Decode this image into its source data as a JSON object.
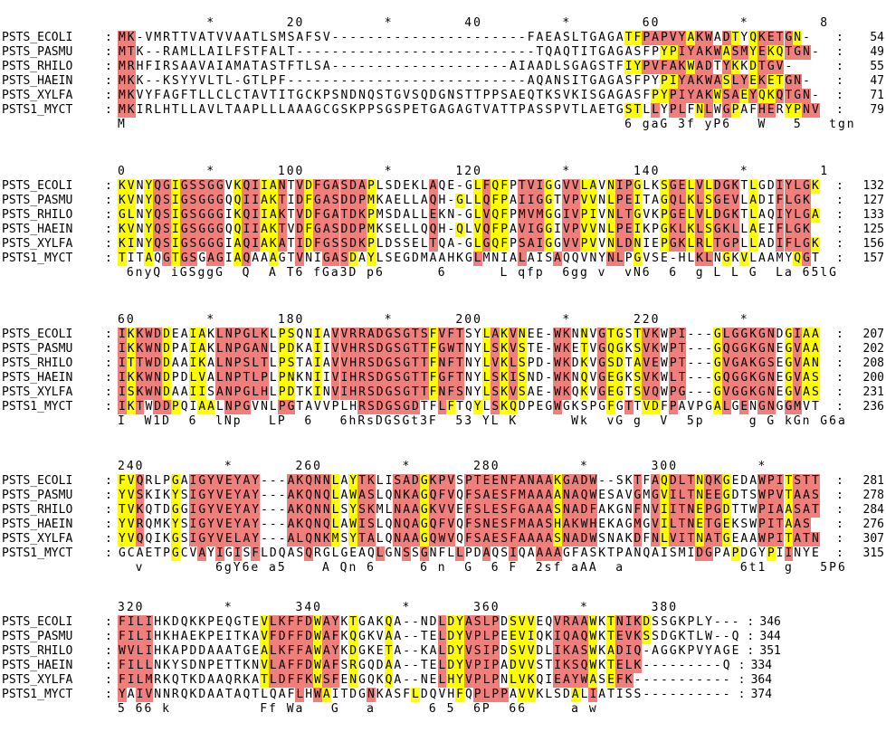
{
  "colors": {
    "identical": "#f07f7b",
    "conserved": "#ffff00",
    "similar": "#ffff99"
  },
  "separator": ":",
  "blocks": [
    {
      "ruler": "          *        20         *        40         *        60         *        8",
      "rows": [
        {
          "name": "PSTS_ECOLI",
          "seq": "MK-VMRTTVATVVAATLSMSAFSV----------------------FAEASLTGAGATFPAPVYAKWADTYQKETGN-",
          "num": "54",
          "mask": "RR.......................................................YYRRRRRYRR.RY.YRRRRYR.YR..YRYY."
        },
        {
          "name": "PSTS_PASMU",
          "seq": "MTK--RAMLLAILFSTFALT---------------------------TQAQTITGAGASFPYPIYAKWASMYEKQTGN-",
          "num": "49",
          "mask": "RR...........................................................YYRRRRRYRRYRYYRRRRYRRYR..YRYY."
        },
        {
          "name": "PSTS_RHILO",
          "seq": "MRHFIRSAAVAIAMATASTFTLSA--------------------AIAADLSGAGSTFIYPVFAKWADTYKKDTGV-",
          "num": "55",
          "mask": "RR.......................................................YYRRRRRYRR.RY.YRRRRYRRYR..YRYY."
        },
        {
          "name": "PSTS_HAEIN",
          "seq": "MKK--KSYYVLTL-GTLPF---------------------------AQANSITGAGASFPYPIYAKWASLYEKETGN-",
          "num": "47",
          "mask": "RR...........................................................YYRRRRRYRRYRYYRRRRYRRYR..YRYY."
        },
        {
          "name": "PSTS_XYLFA",
          "seq": "MKVYFAGFTLLCLCTAVTITGCKPSNDNQSTGVSQDGNSTTPPSAEQTKSVKISGAGASFPYPIYAKWSAEYQKQTGN-",
          "num": "71",
          "mask": "RR..........................................................YYRRRRRYRRYRYYRRRRYRRYR..YRYY."
        },
        {
          "name": "PSTS1_MYCT",
          "seq": "MKIRLHTLLAVLTAAPLLLAAAGCGSKPPSGSPETGAGAGTVATTPASSPVTLAETGSTLLYPLFNLWGPAFHERYPNV",
          "num": "79",
          "mask": "RR.......................................................YY.R.RR.YR.RY..RR.YYRRYR..Y.Y.."
        }
      ],
      "consensus": "M                                                        6 gaG 3f yP6   W   5   tgn"
    },
    {
      "ruler": "0         *       100         *       120         *       140         *        1",
      "rows": [
        {
          "name": "PSTS_ECOLI",
          "seq": "KVNYQGIGSSGGVKQIIANTVDFGASDAPLSDEKLAQE-GLFQFPTVIGGVVLAVNIPGLKSGELVLDGKTLGDIYLGK",
          "num": "132",
          "mask": "YY.YRRYRRRRR.YRRYYR.RYRRRRRRY......R..Y.YRYY.RRRY.RRYY.YRRY..YRRYRYRRR.Y..RRRRYR"
        },
        {
          "name": "PSTS_PASMU",
          "seq": "KVNYQSIGSGGGQQIIAKTIDFGASDDPMKAELLAQH-GLLQFPAIIGGTVPVVNLPEITAGQLKLSGEVLADIFLGK",
          "num": "127",
          "mask": "YY.YRRYRRRRR.YRRYYR.RYRRRRRRY......R..Y.YRYY.RRRY.RRYY.YRRY..YRRYRYRRR.Y..RRRRYR"
        },
        {
          "name": "PSTS_RHILO",
          "seq": "GLNYQSIGSGGGIKQIIAKTVDFGATDKPMSDALLEKN-GLVQFPMVMGGIVPIVNLTGVKPGELVLDGKTLAQIYLGA",
          "num": "133",
          "mask": "YY.YRRYRRRRR.YRRYYR.RYRRRRRRY......R..Y.YRYY.RRRY.RRYY.YRRY..YRRYRYRRR.Y..RRRRYR"
        },
        {
          "name": "PSTS_HAEIN",
          "seq": "KVNYQSIGSGGGQQIIAKTVDFGASDDPMKSELLQQH-QLVQFPAVIGGIVPVVNLPEIKPGKLKLSGKLLAEIFLGK",
          "num": "125",
          "mask": "YY.YRRYRRRRR.YRRYYR.RYRRRRRRY......R..Y.YRYY.RRRY.RRYY.YRRY..YRRYRYRRR.Y..RRRRYR"
        },
        {
          "name": "PSTS_XYLFA",
          "seq": "KINYQSIGSGGGIAQIAKATIDFGSSDKPLDSSELTQA-GLGQFPSAIGGVVPVVNLDNIEPGKLRLTGPLLADIFLGK",
          "num": "156",
          "mask": "YY.YRRYRRRRR.YRRYYR.RYRRRRRRY......R..Y.YRYY.RRRY.RRYY.YRRY..YRRYRYRRR.Y..RRRRYR"
        },
        {
          "name": "PSTS1_MYCT",
          "seq": "TITAQGTGSGAGIAQAAAGTVNIGASDAYLSEGDMAAHKGLMNIALAISAQQVNYNLPGVSE-HLKLNGKVLAAMYQGT",
          "num": "157",
          "mask": "Y..Y.RYRR.RR.YR..Y..R..RRRY.Y...........R....R...R.....RR.Y......RR.Y.Y.....YR..R"
        }
      ],
      "consensus": " 6nyQ iGSggG  Q  A T6 fGa3D p6      6      L qfp  6gg v  vN6  6  g L L G  La 65lG"
    },
    {
      "ruler": "60        *       180         *       200         *       220         *",
      "rows": [
        {
          "name": "PSTS_ECOLI",
          "seq": "IKKWDDEAIAKLNPGLKLPSQNIAVVRRADGSGTSFVFTSYLAKVNEE-WKNNVGTGSTVKWPI---GLGGKGNDGIAA",
          "num": "207",
          "mask": "RYRRRY..YY.RRRRRR.YY..Y.RRRRRRRRRRRYRRR..YRYRY...RR.Y.RYY.YRR.RR...YRRRRRR.YRYYRR"
        },
        {
          "name": "PSTS_PASMU",
          "seq": "IKKWNDPAIAKLNPGANLPDKAIIVVHRSDGSGTTFGWTNYLSKVSTE-WKETVGQGKSVKWPT---GQGGKGNEGVAA",
          "num": "202",
          "mask": "RYRRRY..YY.RRRRRR.YY..Y.RRRRRRRRRRRYRRR..YRYRY...RR.Y.RYY.YRR.RR...YRRRRRR.YRYYRR"
        },
        {
          "name": "PSTS_RHILO",
          "seq": "ITTWDDAAIKALNPSLTLPSTAIAVVHRSDGSGTTFNFTNYLVKLSPD-WKDKVGSDTAVEWPT---GVGAKGSEGVAN",
          "num": "208",
          "mask": "RYRRRY..YY.RRRRRR.YY..Y.RRRRRRRRRRRYRRR..YRYRY...RR.Y.RYY.YRR.RR...YRRRRRR.YRYYRR"
        },
        {
          "name": "PSTS_HAEIN",
          "seq": "IKKWNDPDLVALNPTLPLPNKNIIVIHRSDGSGTTFGFTNYLSKISND-WKNQVGEGKSVKWLT---GQGGKGNEGVAS",
          "num": "200",
          "mask": "RYRRRY..YY.RRRRRR.YY..Y.RRRRRRRRRRRYRRR..YRYRY...RR.Y.RYY.YRR.RR...YRRRRRR.YRYYRR"
        },
        {
          "name": "PSTS_XYLFA",
          "seq": "ISKWNDAAIISANPGLHLPDTKINVIHRSDGSGTTFNFSNYLSKVSAE-WKQKVGEGTSVQWPG---GVGGKGNEGVAS",
          "num": "231",
          "mask": "RYRRRY..YY.RRRRRR.YY..Y.RRRRRRRRRRRYRRR..YRYRY...RR.Y.RYY.YRR.RR...YRRRRRR.YRYYRR"
        },
        {
          "name": "PSTS1_MYCT",
          "seq": "IKTWDDPQIAALNPGVNLPGTAVVPLHRSDGSGDTFLFTQYLSKQDPEGWGKSPGFGTTVDFPAVPGALGENGNGGMVT",
          "num": "236",
          "mask": "RYR.RRY..YY.RRR...RR.......RRRRRRR..RY..Y.RYY....R.....Y.R.YY.R....YR.R.RR.RR..YR"
        }
      ],
      "consensus": "I  W1D  6  lNp   LP  6   6hRsDGSGt3F  53 YL K      Wk  vG g  V  5p     g G kGn G6a"
    },
    {
      "ruler": "240         *       260         *       280         *       300         *",
      "rows": [
        {
          "name": "PSTS_ECOLI",
          "seq": "FVQRLPGAIGYVEYAY---AKQNNLAYTKLISADGKPVSPTEENFANAAKGADW--SKTFAQDLTNQKGEDAWPITSTT",
          "num": "281",
          "mask": "YYR...Y.RRRRRRRR...RRRRRY.YRR..RRRYRRR.RRRRRRRRRRYRRRR....R.RYRRRYRRY...RRRYRRR..."
        },
        {
          "name": "PSTS_PASMU",
          "seq": "YVSKIKYSIGYVEYAY---AKQNQLAWASLQNKAGQFVQFSAESFMAAAANAQWESAVGMGVILTNEEGDTSWPVTAAS",
          "num": "278",
          "mask": "YYR...Y.RRRRRRRR...RRRRRY.YRR..RRRYRRR.RRRRRRRRRRYRRRR....R.RYRRRYRRY...RRRYRRR..."
        },
        {
          "name": "PSTS_RHILO",
          "seq": "TVKQTDGGIGYVEYAY---AKQNNLSYSKMLNAAGKVVEFSLESFGAAASNADFAKGNFNVIITNEPGDTTWPIAASAT",
          "num": "284",
          "mask": "YYR...Y.RRRRRRRR...RRRRRY.YRR..RRRYRRR.RRRRRRRRRRYRRRR....R.RYRRRYRRY...RRRYRRR..."
        },
        {
          "name": "PSTS_HAEIN",
          "seq": "YVRQMKYSIGYVEYAY---AKQNQLAWISLQNQAGQFVQFSNESFMAASHAKWHEKAGMGVILTNETGEKSWPITAAS",
          "num": "276",
          "mask": "YYR...Y.RRRRRRRR...RRRRRY.YRR..RRRYRRR.RRRRRRRRRRYRRRR....R.RYRRRYRRY...RRRYRRR..."
        },
        {
          "name": "PSTS_XYLFA",
          "seq": "YVQQIKGSIGYVELAY---ALQNKMSYTALQNAAGQWVQFSAESFAAAASNADWSNAKDFNLVITNATGEAAWPITATN",
          "num": "307",
          "mask": "YYR...Y.RRRRRRRR...RRRRRY.YRR..RRRYRRR.RRRRRRRRRRYRRRR....R.RYRRRYRRY...RRRYRRR..."
        },
        {
          "name": "PSTS1_MYCT",
          "seq": "GCAETPGCVAYIGISFLDQASQRGLGEAQLGNSSGNFLLPDAQSIQAAAAGFASKTPANQAISMIDGPAPDGYPIINYE",
          "num": "315",
          "mask": "......Y..R.R.R.R.....R.......R..R.R...R..R..R..RRR...............RR..Y...Y.R......"
        }
      ],
      "consensus": "  v        6gY6e a5    A Qn 6     6 n  G  6 F  2sf aAA  a             6t1  g   5P6"
    },
    {
      "ruler": "320         *       340         *       360         *       380",
      "rows": [
        {
          "name": "PSTS_ECOLI",
          "seq": "FILIHKDQKKPEQGTEVLKFFDWAYKTGAKQA--NDLDYASLPDSVVEQVRAAWKTNIKDSSGKPLY---",
          "num": "346",
          "mask": "RRRR............YRRRRRYRR.Y...Y.....RYYRRRR.YYY..RRRRY.YRRRY..........."
        },
        {
          "name": "PSTS_PASMU",
          "seq": "FILIHKHAEKPEITKAVFDFFDWAFKQGKVAA--TELDYVPLPEEVIQKIQAQWKTEVKSSDGKTLW--Q",
          "num": "344",
          "mask": "RRRR............YRRRRRYRR.Y...Y.....RYYRRRR.YYY..RRRRY.YRRRY..........."
        },
        {
          "name": "PSTS_RHILO",
          "seq": "WVLIHKAPDDAAATGEALKFFAWAYKDGKETA--KALDYVSIPDSVVDLIKASWKADIQ-AGGKPVYAGE",
          "num": "351",
          "mask": "RRRR............YRRRRRYRR.Y...Y.....RYYRRRR.YYY..RRRRY.YRRRY..........."
        },
        {
          "name": "PSTS_HAEIN",
          "seq": "FILLNKYSDNPETTKNVLAFFDWAFSRGQDAA--TELDYVPIPADVVSTIKSQWKTELK---------Q",
          "num": "334",
          "mask": "RRRR............YRRRRRYRR.Y...Y.....RYYRRRR.YYY..RRRRY.YRRRY..........."
        },
        {
          "name": "PSTS_XYLFA",
          "seq": "FILMRKQTKDAAQRKATLDFFKWSFENGQKQA--NELHYVPLPNLVKQIEAYWASEFK-----------",
          "num": "364",
          "mask": "RRRR............YRRRRRYRR.Y...Y.....RYYRRRR.YYY..RRRRY.YRRRY..........."
        },
        {
          "name": "PSTS1_MYCT",
          "seq": "YAIVNNRQKDAATAQTLQAFLHWAITDGNKASFLDQVHFQPLPPAVVKLSDALIATISS----------",
          "num": "374",
          "mask": "R.RR................R.RY....R....Y....Y.RRRR.YY....Y.R......."
        }
      ],
      "consensus": "5 66 k          Ff Wa   G   a      6 5  6P  66     a w"
    }
  ]
}
